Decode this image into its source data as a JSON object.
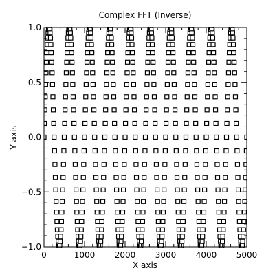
{
  "chart_data": {
    "type": "scatter",
    "title": "Complex FFT (Inverse)",
    "xlabel": "X axis",
    "ylabel": "Y axis",
    "xlim": [
      0,
      5000
    ],
    "ylim": [
      -1.0,
      1.0
    ],
    "x_ticks": [
      0,
      1000,
      2000,
      3000,
      4000,
      5000
    ],
    "x_tick_labels": [
      "0",
      "1000",
      "2000",
      "3000",
      "4000",
      "5000"
    ],
    "y_ticks": [
      -1.0,
      -0.5,
      0.0,
      0.5,
      1.0
    ],
    "y_tick_labels": [
      "−1.0",
      "−0.5",
      "0.0",
      "0.5",
      "1.0"
    ],
    "grid": false,
    "marker": "open-square",
    "color": "#000000",
    "series": [
      {
        "function": "sin",
        "amplitude": 1.0,
        "cycles_per_1000": 2,
        "x_start": 0,
        "x_end": 5000,
        "x_step": 10
      }
    ],
    "reference_line_y": 0.0
  }
}
